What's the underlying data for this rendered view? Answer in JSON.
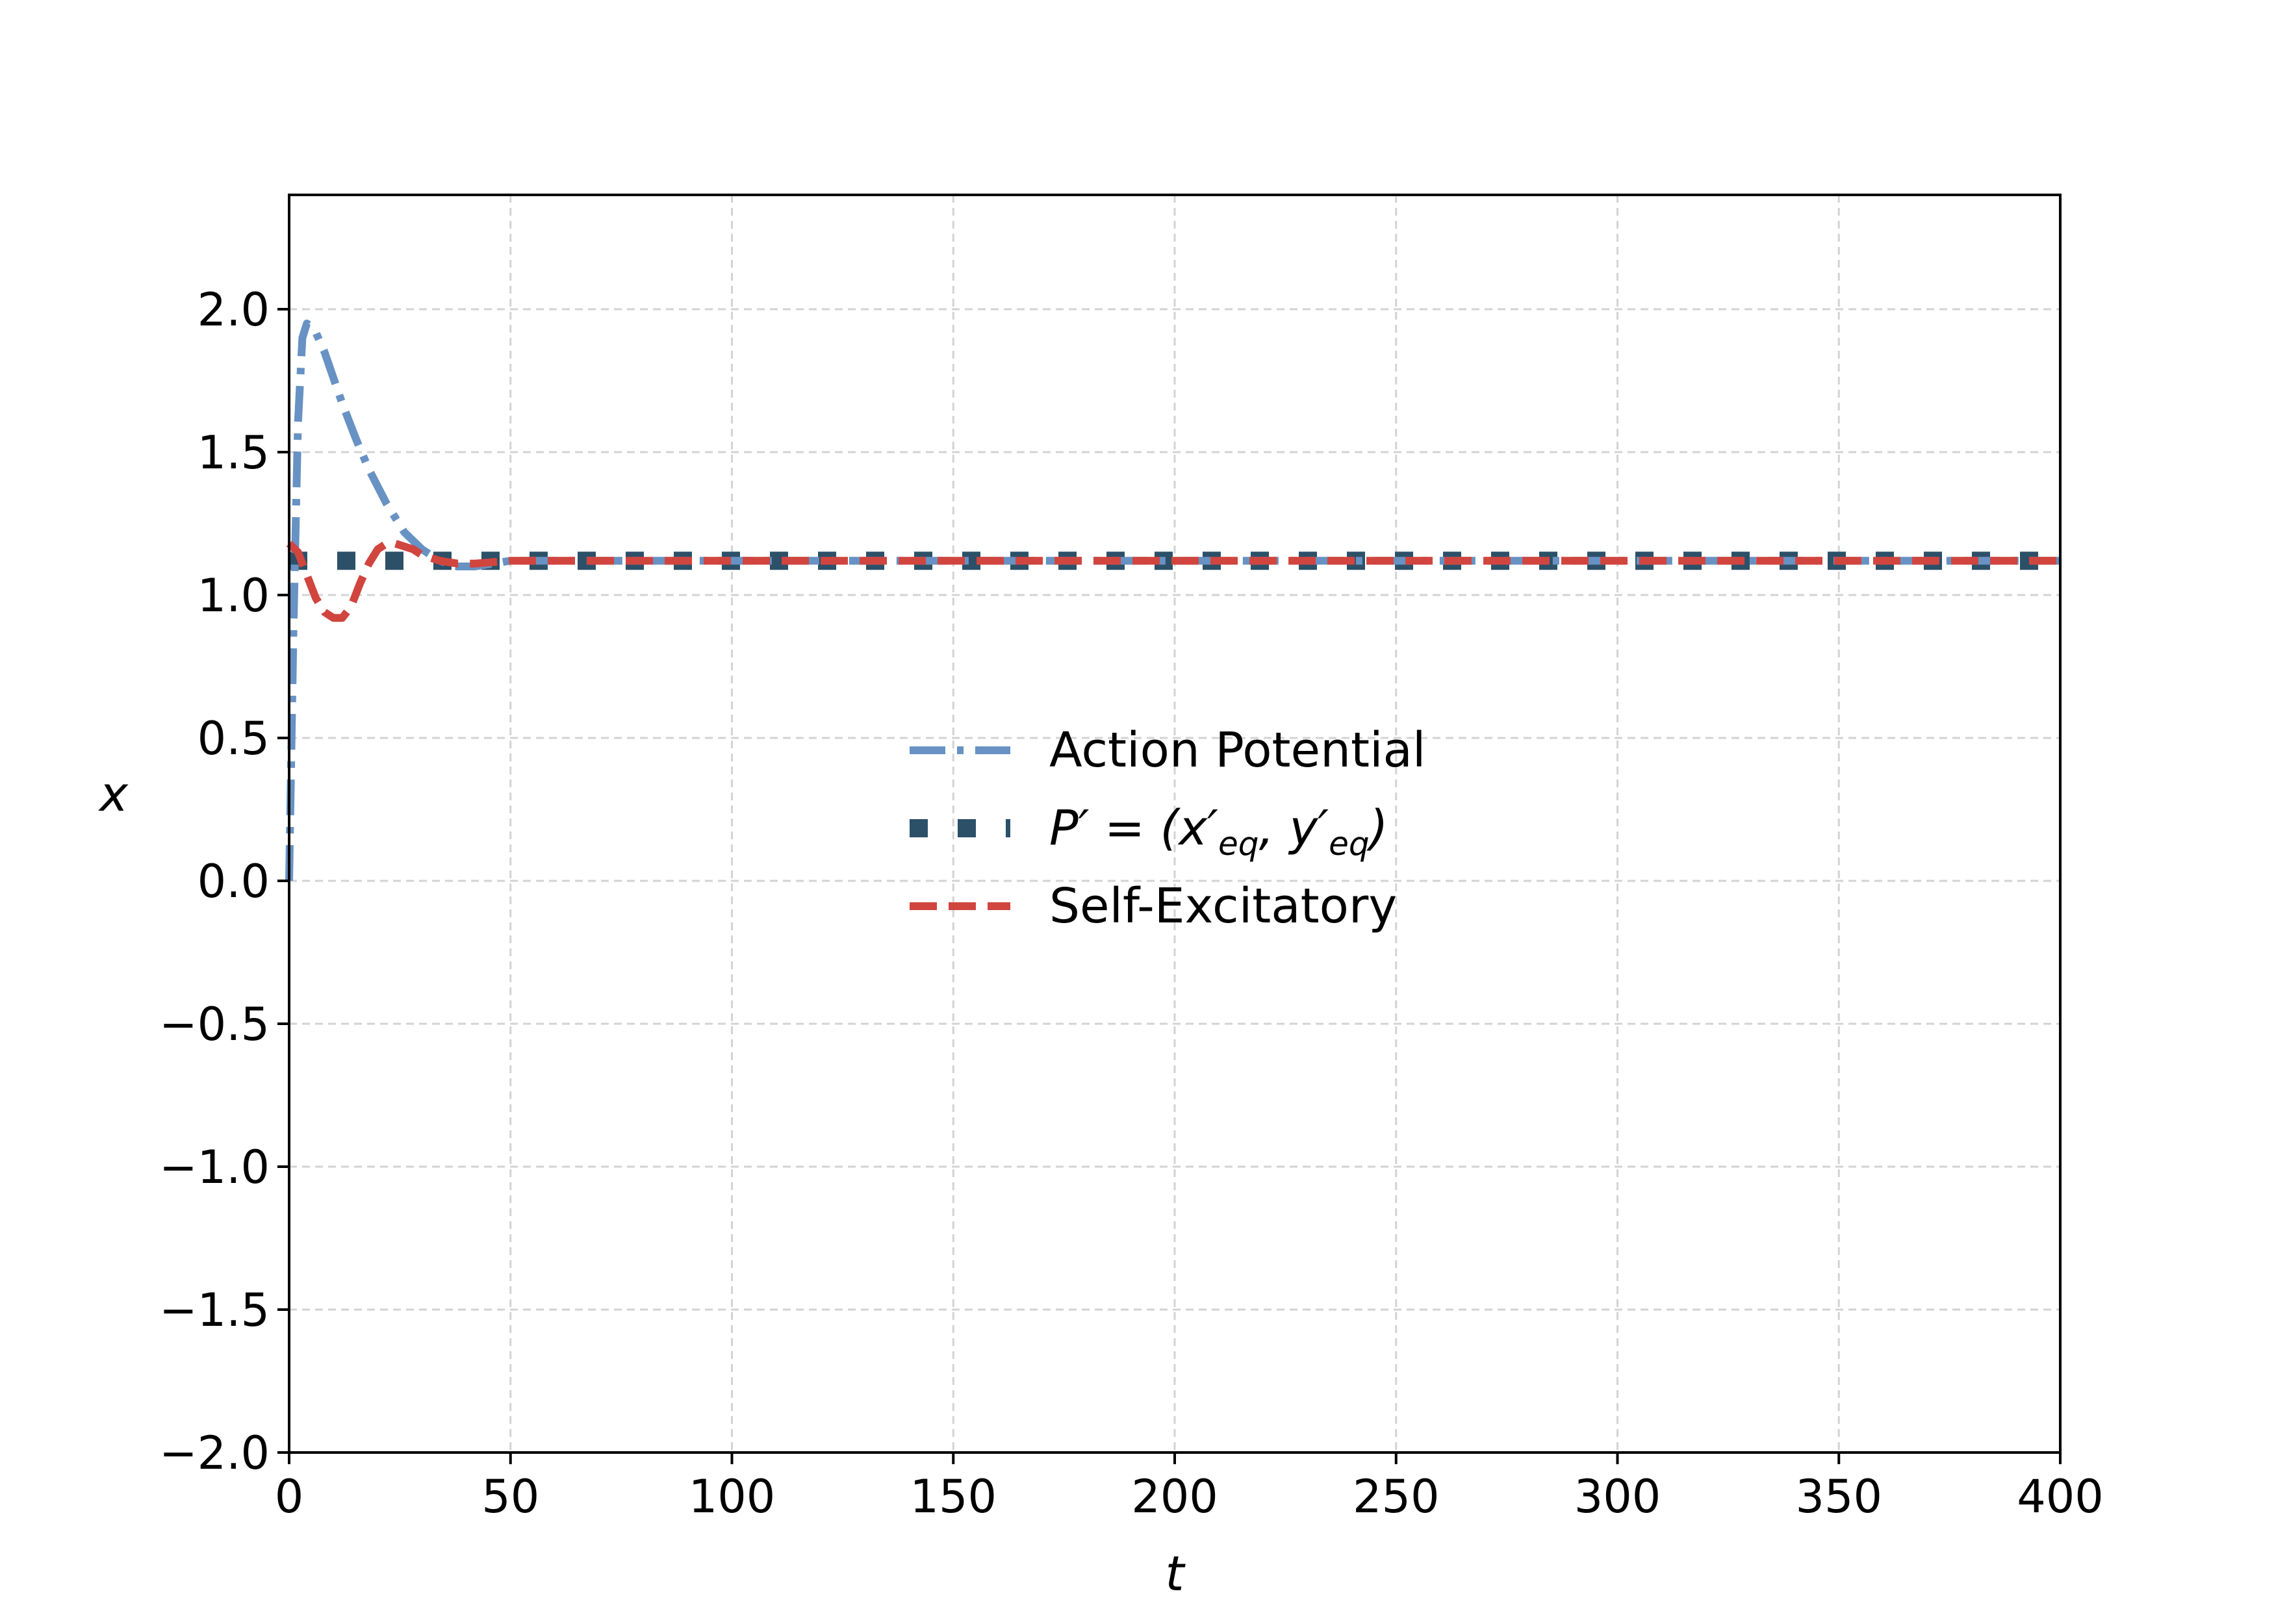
{
  "chart_data": {
    "type": "line",
    "title": "",
    "xlabel": "t",
    "ylabel": "x",
    "xlim": [
      0,
      400
    ],
    "ylim": [
      -2.0,
      2.4
    ],
    "xticks": [
      "0",
      "50",
      "100",
      "150",
      "200",
      "250",
      "300",
      "350",
      "400"
    ],
    "yticks": [
      "−2.0",
      "−1.5",
      "−1.0",
      "−0.5",
      "0.0",
      "0.5",
      "1.0",
      "1.5",
      "2.0"
    ],
    "grid": true,
    "legend_placement": "center",
    "series": [
      {
        "name": "Action Potential",
        "color": "#6792c3",
        "style": "dashdot",
        "x": [
          0,
          1,
          2,
          3,
          4,
          5,
          6,
          8,
          10,
          12,
          15,
          18,
          22,
          26,
          30,
          34,
          38,
          42,
          46,
          50,
          55,
          60,
          70,
          80,
          100,
          150,
          200,
          250,
          300,
          350,
          400
        ],
        "y": [
          0.0,
          0.9,
          1.6,
          1.9,
          1.95,
          1.94,
          1.92,
          1.85,
          1.76,
          1.67,
          1.55,
          1.44,
          1.32,
          1.22,
          1.16,
          1.12,
          1.1,
          1.1,
          1.11,
          1.12,
          1.12,
          1.12,
          1.12,
          1.12,
          1.12,
          1.12,
          1.12,
          1.12,
          1.12,
          1.12,
          1.12
        ]
      },
      {
        "name": "P′ = (x′eq, y′eq)",
        "color": "#2c5068",
        "style": "dotted",
        "x": [
          0,
          400
        ],
        "y": [
          1.12,
          1.12
        ]
      },
      {
        "name": "Self-Excitatory",
        "color": "#d1453f",
        "style": "dashed",
        "x": [
          0,
          2,
          4,
          6,
          8,
          10,
          12,
          14,
          16,
          18,
          20,
          22,
          24,
          26,
          28,
          30,
          34,
          38,
          42,
          50,
          60,
          80,
          100,
          150,
          200,
          250,
          300,
          350,
          400
        ],
        "y": [
          1.18,
          1.15,
          1.07,
          0.99,
          0.94,
          0.92,
          0.92,
          0.96,
          1.04,
          1.11,
          1.16,
          1.18,
          1.18,
          1.17,
          1.16,
          1.14,
          1.12,
          1.11,
          1.11,
          1.12,
          1.12,
          1.12,
          1.12,
          1.12,
          1.12,
          1.12,
          1.12,
          1.12,
          1.12
        ]
      }
    ],
    "legend": {
      "entries": [
        {
          "label": "Action Potential",
          "series": 0
        },
        {
          "label_prefix": "P′ = (x′",
          "label_sub1": "eq",
          "label_mid": ", y′",
          "label_sub2": "eq",
          "label_suffix": ")",
          "series": 1
        },
        {
          "label": "Self-Excitatory",
          "series": 2
        }
      ]
    }
  }
}
